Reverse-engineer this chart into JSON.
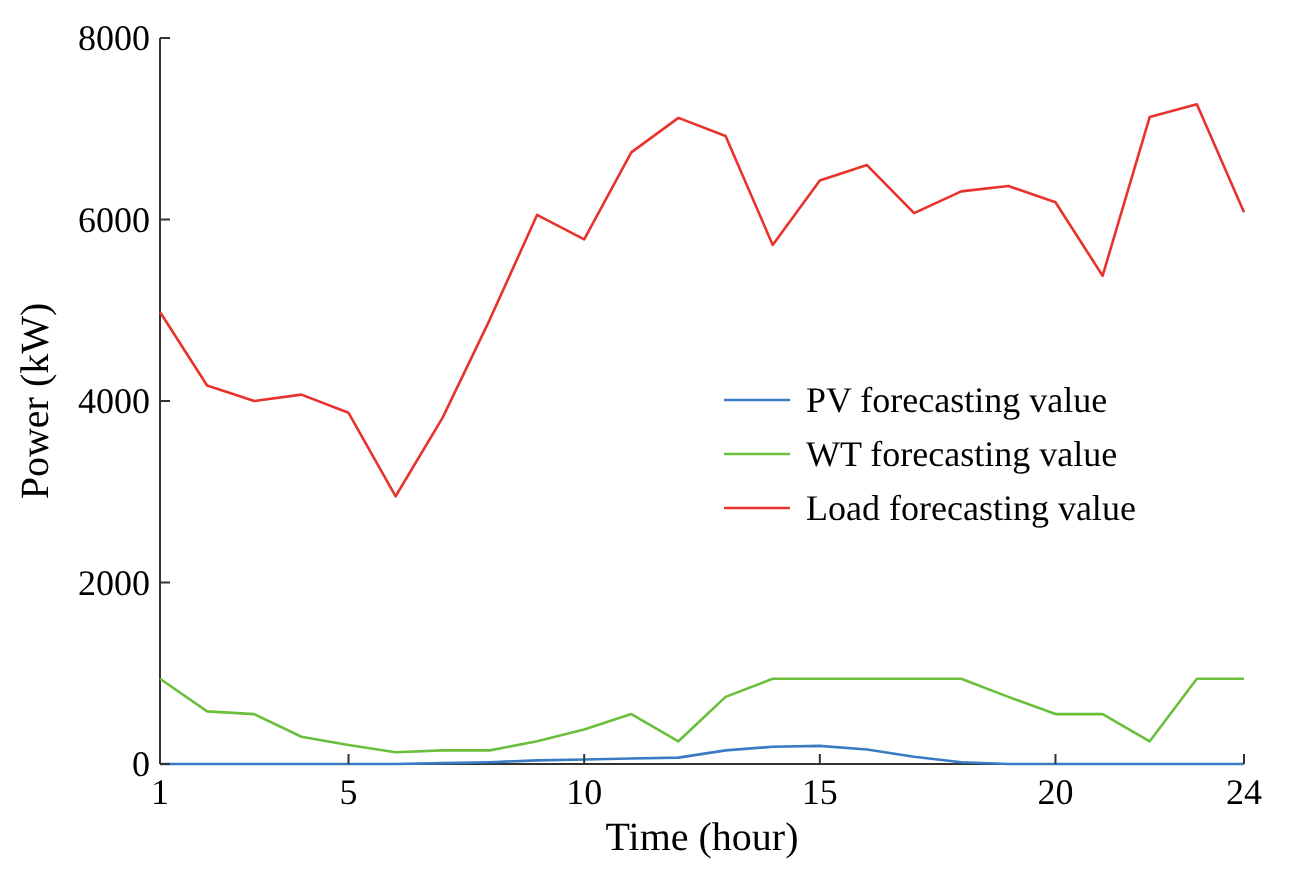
{
  "chart_data": {
    "type": "line",
    "xlabel": "Time (hour)",
    "ylabel": "Power (kW)",
    "x": [
      1,
      2,
      3,
      4,
      5,
      6,
      7,
      8,
      9,
      10,
      11,
      12,
      13,
      14,
      15,
      16,
      17,
      18,
      19,
      20,
      21,
      22,
      23,
      24
    ],
    "series": [
      {
        "name": "PV forecasting value",
        "color": "#3a7cc3",
        "values": [
          0,
          0,
          0,
          0,
          0,
          0,
          10,
          20,
          40,
          50,
          60,
          70,
          150,
          190,
          200,
          160,
          80,
          20,
          0,
          0,
          0,
          0,
          0,
          0
        ]
      },
      {
        "name": "WT forecasting value",
        "color": "#6abf3c",
        "values": [
          940,
          580,
          550,
          300,
          210,
          130,
          150,
          150,
          250,
          380,
          550,
          250,
          740,
          940,
          940,
          940,
          940,
          940,
          740,
          550,
          550,
          250,
          940,
          940
        ]
      },
      {
        "name": "Load forecasting value",
        "color": "#e8322b",
        "values": [
          4980,
          4170,
          4000,
          4070,
          3870,
          2950,
          3820,
          4900,
          6050,
          5780,
          6740,
          7120,
          6920,
          5720,
          6430,
          6600,
          6070,
          6310,
          6370,
          6190,
          5380,
          7130,
          7270,
          6080
        ]
      }
    ],
    "xlim": [
      1,
      24
    ],
    "xticks": [
      1,
      5,
      10,
      15,
      20,
      24
    ],
    "ylim": [
      0,
      8000
    ],
    "yticks": [
      0,
      2000,
      4000,
      6000,
      8000
    ],
    "legend": "right"
  }
}
